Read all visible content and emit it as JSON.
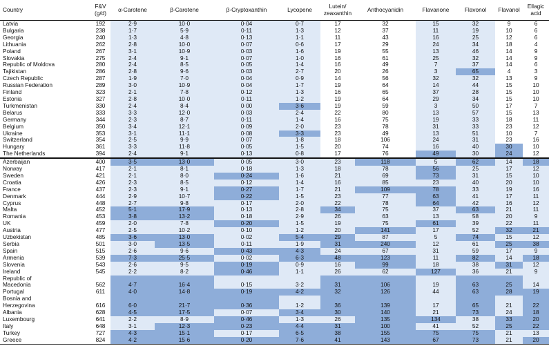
{
  "colors": {
    "none": "#ffffff",
    "light": "#dfe9f6",
    "dark": "#8eadd9"
  },
  "headers": [
    "Country",
    "F&V\n(g/d)",
    "α-Carotene",
    "β-Carotene",
    "β-Cryptoxanthin",
    "Lycopene",
    "Lutein/\nzeaxanthin",
    "Anthocyanidin",
    "Flavanone",
    "Flavonol",
    "Flavanol",
    "Ellagic acid"
  ],
  "rows": [
    {
      "cells": [
        "Latvia",
        "192",
        "2·9",
        "10·0",
        "0·04",
        "0·7",
        "17",
        "32",
        "15",
        "32",
        "9",
        "6"
      ],
      "shade": [
        0,
        0,
        1,
        1,
        1,
        1,
        0,
        0,
        1,
        1,
        0,
        0
      ]
    },
    {
      "cells": [
        "Bulgaria",
        "238",
        "1·7",
        "5·9",
        "0·11",
        "1·3",
        "12",
        "37",
        "11",
        "19",
        "10",
        "6"
      ],
      "shade": [
        0,
        0,
        1,
        1,
        1,
        1,
        0,
        0,
        1,
        1,
        0,
        0
      ]
    },
    {
      "cells": [
        "Georgia",
        "240",
        "1·3",
        "4·8",
        "0·13",
        "1·1",
        "11",
        "43",
        "16",
        "25",
        "12",
        "6"
      ],
      "shade": [
        0,
        0,
        1,
        1,
        1,
        1,
        0,
        0,
        1,
        1,
        0,
        0
      ]
    },
    {
      "cells": [
        "Lithuania",
        "262",
        "2·8",
        "10·0",
        "0·07",
        "0·6",
        "17",
        "29",
        "24",
        "34",
        "18",
        "4"
      ],
      "shade": [
        0,
        0,
        1,
        1,
        1,
        1,
        0,
        0,
        1,
        1,
        0,
        0
      ]
    },
    {
      "cells": [
        "Poland",
        "267",
        "3·1",
        "10·9",
        "0·03",
        "1·6",
        "19",
        "55",
        "13",
        "46",
        "14",
        "9"
      ],
      "shade": [
        0,
        0,
        1,
        1,
        1,
        1,
        0,
        0,
        1,
        1,
        0,
        0
      ]
    },
    {
      "cells": [
        "Slovakia",
        "275",
        "2·4",
        "9·1",
        "0·07",
        "1·0",
        "16",
        "61",
        "25",
        "32",
        "14",
        "9"
      ],
      "shade": [
        0,
        0,
        1,
        1,
        1,
        1,
        0,
        0,
        1,
        1,
        0,
        0
      ]
    },
    {
      "cells": [
        "Republic of Moldova",
        "280",
        "2·4",
        "8·5",
        "0·05",
        "1·4",
        "16",
        "49",
        "7",
        "37",
        "14",
        "6"
      ],
      "shade": [
        0,
        0,
        1,
        1,
        1,
        1,
        0,
        0,
        1,
        1,
        0,
        0
      ]
    },
    {
      "cells": [
        "Tajikistan",
        "286",
        "2·8",
        "9·6",
        "0·03",
        "2·7",
        "20",
        "26",
        "3",
        "65",
        "4",
        "3"
      ],
      "shade": [
        0,
        0,
        1,
        1,
        1,
        1,
        0,
        0,
        1,
        2,
        0,
        0
      ]
    },
    {
      "cells": [
        "Czech Republic",
        "287",
        "1·9",
        "7·0",
        "0·04",
        "0·9",
        "14",
        "56",
        "32",
        "32",
        "13",
        "9"
      ],
      "shade": [
        0,
        0,
        1,
        1,
        1,
        1,
        0,
        0,
        1,
        1,
        0,
        0
      ]
    },
    {
      "cells": [
        "Russian Federation",
        "289",
        "3·0",
        "10·9",
        "0·04",
        "1·7",
        "19",
        "64",
        "14",
        "44",
        "15",
        "10"
      ],
      "shade": [
        0,
        0,
        1,
        1,
        1,
        1,
        0,
        0,
        1,
        1,
        0,
        0
      ]
    },
    {
      "cells": [
        "Finland",
        "323",
        "2·1",
        "7·8",
        "0·12",
        "1·3",
        "16",
        "65",
        "37",
        "28",
        "15",
        "10"
      ],
      "shade": [
        0,
        0,
        1,
        1,
        1,
        1,
        0,
        0,
        1,
        1,
        0,
        0
      ]
    },
    {
      "cells": [
        "Estonia",
        "327",
        "2·8",
        "10·0",
        "0·11",
        "1·2",
        "19",
        "64",
        "29",
        "34",
        "15",
        "10"
      ],
      "shade": [
        0,
        0,
        1,
        1,
        1,
        1,
        0,
        0,
        1,
        1,
        0,
        0
      ]
    },
    {
      "cells": [
        "Turkmenistan",
        "330",
        "2·4",
        "8·4",
        "0·00",
        "3·6",
        "19",
        "59",
        "3",
        "50",
        "17",
        "7"
      ],
      "shade": [
        0,
        0,
        1,
        1,
        1,
        2,
        0,
        0,
        1,
        1,
        0,
        0
      ]
    },
    {
      "cells": [
        "Belarus",
        "333",
        "3·3",
        "12·0",
        "0·03",
        "2·4",
        "22",
        "80",
        "13",
        "57",
        "15",
        "13"
      ],
      "shade": [
        0,
        0,
        1,
        1,
        1,
        1,
        0,
        0,
        1,
        1,
        0,
        0
      ]
    },
    {
      "cells": [
        "Germany",
        "344",
        "2·3",
        "8·7",
        "0·11",
        "1·4",
        "16",
        "75",
        "19",
        "33",
        "18",
        "11"
      ],
      "shade": [
        0,
        0,
        1,
        1,
        1,
        1,
        0,
        0,
        1,
        1,
        0,
        0
      ]
    },
    {
      "cells": [
        "Belgium",
        "350",
        "3·4",
        "12·1",
        "0·09",
        "2·0",
        "23",
        "78",
        "31",
        "33",
        "23",
        "12"
      ],
      "shade": [
        0,
        0,
        1,
        1,
        1,
        1,
        0,
        0,
        1,
        1,
        0,
        0
      ]
    },
    {
      "cells": [
        "Ukraine",
        "353",
        "3·1",
        "11·1",
        "0·08",
        "3·3",
        "23",
        "49",
        "13",
        "51",
        "10",
        "7"
      ],
      "shade": [
        0,
        0,
        1,
        1,
        1,
        2,
        0,
        0,
        1,
        1,
        0,
        0
      ]
    },
    {
      "cells": [
        "Switzerland",
        "354",
        "2·5",
        "9·9",
        "0·07",
        "1·8",
        "18",
        "106",
        "24",
        "31",
        "23",
        "16"
      ],
      "shade": [
        0,
        0,
        1,
        1,
        1,
        1,
        0,
        0,
        1,
        1,
        0,
        0
      ]
    },
    {
      "cells": [
        "Hungary",
        "361",
        "3·3",
        "11·8",
        "0·05",
        "1·5",
        "20",
        "74",
        "16",
        "40",
        "30",
        "10"
      ],
      "shade": [
        0,
        0,
        1,
        1,
        1,
        1,
        0,
        0,
        1,
        1,
        2,
        0
      ]
    },
    {
      "cells": [
        "The Netherlands",
        "394",
        "2·4",
        "9·1",
        "0·13",
        "0·8",
        "17",
        "76",
        "49",
        "30",
        "24",
        "12"
      ],
      "shade": [
        0,
        0,
        1,
        1,
        1,
        1,
        0,
        0,
        2,
        1,
        2,
        0
      ]
    },
    {
      "cells": [
        "Azerbaijan",
        "400",
        "3·5",
        "13·0",
        "0·05",
        "3·0",
        "23",
        "118",
        "5",
        "62",
        "14",
        "18"
      ],
      "shade": [
        0,
        0,
        2,
        2,
        1,
        1,
        1,
        2,
        1,
        2,
        1,
        2
      ]
    },
    {
      "cells": [
        "Norway",
        "417",
        "2·1",
        "8·1",
        "0·18",
        "1·3",
        "18",
        "78",
        "56",
        "25",
        "17",
        "12"
      ],
      "shade": [
        0,
        0,
        1,
        1,
        1,
        1,
        1,
        1,
        2,
        1,
        1,
        1
      ]
    },
    {
      "cells": [
        "Sweden",
        "421",
        "2·1",
        "8·0",
        "0·24",
        "1·6",
        "21",
        "69",
        "73",
        "31",
        "15",
        "10"
      ],
      "shade": [
        0,
        0,
        1,
        1,
        2,
        1,
        1,
        1,
        2,
        1,
        1,
        1
      ]
    },
    {
      "cells": [
        "Croatia",
        "426",
        "2·3",
        "8·5",
        "0·12",
        "1·4",
        "16",
        "85",
        "23",
        "40",
        "20",
        "10"
      ],
      "shade": [
        0,
        0,
        1,
        1,
        1,
        1,
        1,
        1,
        1,
        1,
        1,
        1
      ]
    },
    {
      "cells": [
        "France",
        "437",
        "2·3",
        "9·1",
        "0·27",
        "1·7",
        "21",
        "109",
        "78",
        "33",
        "19",
        "16"
      ],
      "shade": [
        0,
        0,
        1,
        1,
        2,
        1,
        1,
        2,
        2,
        1,
        1,
        1
      ]
    },
    {
      "cells": [
        "Denmark",
        "444",
        "2·9",
        "10·7",
        "0·22",
        "1·5",
        "23",
        "77",
        "63",
        "41",
        "17",
        "11"
      ],
      "shade": [
        0,
        0,
        1,
        1,
        2,
        1,
        1,
        1,
        2,
        1,
        1,
        1
      ]
    },
    {
      "cells": [
        "Cyprus",
        "448",
        "2·7",
        "9·8",
        "0·17",
        "2·0",
        "22",
        "78",
        "64",
        "42",
        "16",
        "12"
      ],
      "shade": [
        0,
        0,
        1,
        1,
        1,
        1,
        1,
        1,
        2,
        1,
        1,
        1
      ]
    },
    {
      "cells": [
        "Malta",
        "452",
        "5·1",
        "17·9",
        "0·13",
        "2·8",
        "34",
        "75",
        "37",
        "63",
        "21",
        "11"
      ],
      "shade": [
        0,
        0,
        2,
        2,
        1,
        1,
        2,
        1,
        1,
        2,
        1,
        1
      ]
    },
    {
      "cells": [
        "Romania",
        "453",
        "3·8",
        "13·2",
        "0·18",
        "2·9",
        "26",
        "63",
        "13",
        "58",
        "20",
        "9"
      ],
      "shade": [
        0,
        0,
        2,
        2,
        1,
        1,
        1,
        1,
        1,
        1,
        1,
        1
      ]
    },
    {
      "cells": [
        "UK",
        "459",
        "2·0",
        "7·8",
        "0·20",
        "1·5",
        "19",
        "75",
        "61",
        "39",
        "22",
        "11"
      ],
      "shade": [
        0,
        0,
        1,
        1,
        2,
        1,
        1,
        1,
        2,
        1,
        1,
        1
      ]
    },
    {
      "cells": [
        "Austria",
        "477",
        "2·5",
        "10·2",
        "0·10",
        "1·2",
        "20",
        "141",
        "17",
        "52",
        "32",
        "21"
      ],
      "shade": [
        0,
        0,
        1,
        1,
        1,
        1,
        1,
        2,
        1,
        1,
        2,
        2
      ]
    },
    {
      "cells": [
        "Uzbekistan",
        "485",
        "3·6",
        "13·0",
        "0·02",
        "5·4",
        "29",
        "87",
        "5",
        "74",
        "15",
        "12"
      ],
      "shade": [
        0,
        0,
        2,
        2,
        1,
        2,
        2,
        1,
        1,
        2,
        1,
        1
      ]
    },
    {
      "cells": [
        "Serbia",
        "501",
        "3·0",
        "13·5",
        "0·11",
        "1·9",
        "31",
        "240",
        "12",
        "61",
        "25",
        "38"
      ],
      "shade": [
        0,
        0,
        1,
        2,
        1,
        1,
        2,
        2,
        1,
        1,
        2,
        2
      ]
    },
    {
      "cells": [
        "Spain",
        "515",
        "2·6",
        "9·6",
        "0·43",
        "4·3",
        "24",
        "67",
        "31",
        "59",
        "17",
        "9"
      ],
      "shade": [
        0,
        0,
        1,
        1,
        2,
        2,
        1,
        1,
        1,
        1,
        1,
        1
      ]
    },
    {
      "cells": [
        "Armenia",
        "539",
        "7·3",
        "25·5",
        "0·02",
        "6·3",
        "48",
        "123",
        "11",
        "82",
        "14",
        "18"
      ],
      "shade": [
        0,
        0,
        2,
        2,
        1,
        2,
        2,
        2,
        1,
        2,
        1,
        2
      ]
    },
    {
      "cells": [
        "Slovenia",
        "543",
        "2·6",
        "9·5",
        "0·19",
        "0·9",
        "16",
        "99",
        "18",
        "38",
        "31",
        "12"
      ],
      "shade": [
        0,
        0,
        1,
        1,
        2,
        1,
        1,
        2,
        1,
        1,
        2,
        1
      ]
    },
    {
      "cells": [
        "Ireland",
        "545",
        "2·2",
        "8·2",
        "0·46",
        "1·1",
        "26",
        "62",
        "127",
        "36",
        "21",
        "9"
      ],
      "shade": [
        0,
        0,
        1,
        1,
        2,
        1,
        1,
        1,
        2,
        1,
        1,
        1
      ]
    },
    {
      "cells": [
        "Republic of\nMacedonia",
        "562",
        "4·7",
        "16·4",
        "0·15",
        "3·2",
        "31",
        "106",
        "19",
        "63",
        "25",
        "14"
      ],
      "shade": [
        0,
        0,
        2,
        2,
        1,
        1,
        2,
        2,
        1,
        2,
        2,
        1
      ],
      "tall": true
    },
    {
      "cells": [
        "Portugal",
        "611",
        "4·0",
        "14·8",
        "0·19",
        "4·2",
        "32",
        "126",
        "44",
        "63",
        "28",
        "19"
      ],
      "shade": [
        0,
        0,
        2,
        2,
        2,
        2,
        2,
        2,
        1,
        2,
        2,
        2
      ]
    },
    {
      "cells": [
        "Bosnia and\nHerzegovina",
        "616",
        "6·0",
        "21·7",
        "0·36",
        "1·2",
        "36",
        "139",
        "17",
        "65",
        "21",
        "22"
      ],
      "shade": [
        0,
        0,
        2,
        2,
        2,
        1,
        2,
        2,
        1,
        2,
        1,
        2
      ],
      "tall": true
    },
    {
      "cells": [
        "Albania",
        "628",
        "4·5",
        "17·5",
        "0·07",
        "3·4",
        "30",
        "140",
        "21",
        "73",
        "24",
        "18"
      ],
      "shade": [
        0,
        0,
        2,
        2,
        1,
        2,
        2,
        2,
        1,
        2,
        1,
        2
      ]
    },
    {
      "cells": [
        "Luxembourg",
        "641",
        "2·2",
        "8·9",
        "0·46",
        "1·3",
        "26",
        "135",
        "134",
        "38",
        "33",
        "20"
      ],
      "shade": [
        0,
        0,
        1,
        1,
        2,
        1,
        1,
        2,
        2,
        1,
        2,
        2
      ]
    },
    {
      "cells": [
        "Italy",
        "648",
        "3·1",
        "12·3",
        "0·23",
        "4·4",
        "31",
        "100",
        "41",
        "52",
        "25",
        "22"
      ],
      "shade": [
        0,
        0,
        1,
        2,
        2,
        2,
        2,
        2,
        1,
        1,
        2,
        2
      ]
    },
    {
      "cells": [
        "Turkey",
        "727",
        "4·3",
        "15·1",
        "0·17",
        "6·5",
        "38",
        "155",
        "75",
        "75",
        "21",
        "13"
      ],
      "shade": [
        0,
        0,
        2,
        2,
        1,
        2,
        2,
        2,
        2,
        2,
        1,
        1
      ]
    },
    {
      "cells": [
        "Greece",
        "824",
        "4·2",
        "15·6",
        "0·20",
        "7·6",
        "41",
        "143",
        "67",
        "73",
        "21",
        "20"
      ],
      "shade": [
        0,
        0,
        2,
        2,
        2,
        2,
        2,
        2,
        2,
        2,
        1,
        2
      ]
    }
  ]
}
